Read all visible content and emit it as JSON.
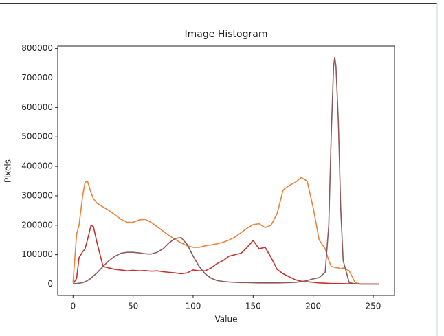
{
  "chart_data": {
    "type": "line",
    "title": "Image Histogram",
    "x_label": "Value",
    "y_label": "Pixels",
    "x": [
      0,
      3,
      5,
      8,
      10,
      12,
      15,
      17,
      20,
      25,
      30,
      35,
      40,
      45,
      50,
      55,
      60,
      65,
      70,
      75,
      80,
      85,
      90,
      95,
      100,
      105,
      110,
      115,
      120,
      125,
      130,
      135,
      140,
      145,
      150,
      155,
      160,
      165,
      170,
      175,
      180,
      185,
      190,
      195,
      200,
      205,
      210,
      213,
      215,
      217,
      218,
      219,
      221,
      223,
      225,
      230,
      235,
      240,
      245,
      250,
      255
    ],
    "series": [
      {
        "color": "#e8833a",
        "values": [
          5000,
          170000,
          200000,
          300000,
          345000,
          350000,
          310000,
          290000,
          275000,
          262000,
          250000,
          235000,
          220000,
          210000,
          210000,
          218000,
          220000,
          210000,
          195000,
          180000,
          165000,
          152000,
          140000,
          130000,
          125000,
          125000,
          130000,
          133000,
          137000,
          142000,
          150000,
          160000,
          175000,
          190000,
          202000,
          205000,
          192000,
          200000,
          240000,
          320000,
          335000,
          345000,
          362000,
          350000,
          260000,
          150000,
          120000,
          80000,
          60000,
          58000,
          57000,
          56000,
          55000,
          52000,
          55000,
          45000,
          5000,
          0,
          0,
          0,
          0
        ]
      },
      {
        "color": "#c9302c",
        "values": [
          0,
          20000,
          90000,
          110000,
          120000,
          150000,
          200000,
          195000,
          140000,
          60000,
          55000,
          50000,
          48000,
          45000,
          47000,
          45000,
          46000,
          44000,
          45000,
          42000,
          40000,
          38000,
          35000,
          38000,
          48000,
          45000,
          45000,
          55000,
          70000,
          80000,
          95000,
          100000,
          105000,
          125000,
          148000,
          120000,
          125000,
          90000,
          50000,
          35000,
          25000,
          15000,
          10000,
          8000,
          6000,
          4000,
          3000,
          2500,
          2000,
          2000,
          2000,
          2000,
          2000,
          1500,
          1500,
          1000,
          800,
          500,
          500,
          500,
          500
        ]
      },
      {
        "color": "#8c5a5a",
        "values": [
          1000,
          2000,
          3000,
          5000,
          8000,
          12000,
          20000,
          28000,
          38000,
          60000,
          80000,
          95000,
          105000,
          108000,
          108000,
          106000,
          103000,
          102000,
          108000,
          120000,
          140000,
          155000,
          158000,
          135000,
          95000,
          60000,
          35000,
          20000,
          12000,
          9000,
          7000,
          6000,
          5000,
          5000,
          4500,
          4000,
          4000,
          4000,
          4000,
          4500,
          5000,
          6000,
          8000,
          12000,
          18000,
          22000,
          40000,
          200000,
          500000,
          740000,
          770000,
          740000,
          550000,
          250000,
          80000,
          5000,
          1000,
          0,
          0,
          0,
          0
        ]
      }
    ],
    "xlim": [
      -12.75,
      267.75
    ],
    "xticks": [
      0,
      50,
      100,
      150,
      200,
      250
    ],
    "ylim": [
      -38500,
      808500
    ],
    "yticks": [
      0,
      100000,
      200000,
      300000,
      400000,
      500000,
      600000,
      700000,
      800000
    ],
    "grid": false
  }
}
